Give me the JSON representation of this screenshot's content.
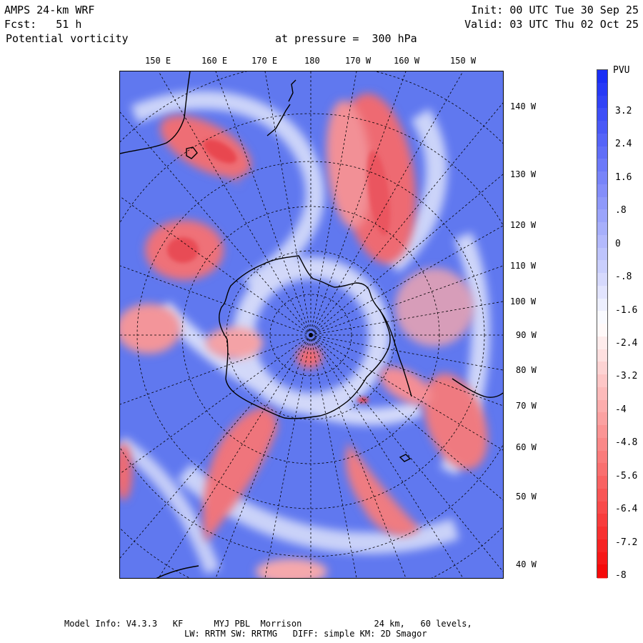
{
  "header": {
    "model": "AMPS 24-km WRF",
    "fcst": "Fcst:   51 h",
    "field": "Potential vorticity",
    "pressure": "at pressure =  300 hPa",
    "init": "Init: 00 UTC Tue 30 Sep 25",
    "valid": "Valid: 03 UTC Thu 02 Oct 25"
  },
  "map": {
    "top_labels": [
      "150 E",
      "160 E",
      "170 E",
      "180",
      "170 W",
      "160 W",
      "150 W"
    ],
    "right_labels": [
      "140 W",
      "130 W",
      "120 W",
      "110 W",
      "100 W",
      "90 W",
      "80 W",
      "70 W",
      "60 W",
      "50 W",
      "40 W"
    ]
  },
  "colorbar": {
    "unit": "PVU",
    "ticks": [
      "3.2",
      "2.4",
      "1.6",
      ".8",
      "0",
      "-.8",
      "-1.6",
      "-2.4",
      "-3.2",
      "-4",
      "-4.8",
      "-5.6",
      "-6.4",
      "-7.2",
      "-8"
    ],
    "colors": {
      "top": "#1a2ef5",
      "mid": "#ffffff",
      "bottom": "#f50a0a",
      "field_blue": "#5f7af0",
      "field_red": "#ec3c46"
    }
  },
  "footer": {
    "line1": "Model Info: V4.3.3   KF      MYJ PBL  Morrison              24 km,   60 levels,",
    "line2": "LW: RRTM SW: RRTMG   DIFF: simple KM: 2D Smagor"
  }
}
